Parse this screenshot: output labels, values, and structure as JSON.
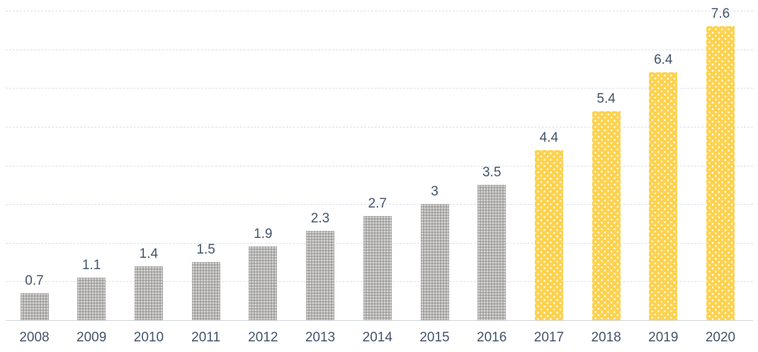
{
  "chart_data": {
    "type": "bar",
    "title": "",
    "categories": [
      "2008",
      "2009",
      "2010",
      "2011",
      "2012",
      "2013",
      "2014",
      "2015",
      "2016",
      "2017",
      "2018",
      "2019",
      "2020"
    ],
    "values": [
      0.7,
      1.1,
      1.4,
      1.5,
      1.9,
      2.3,
      2.7,
      3,
      3.5,
      4.4,
      5.4,
      6.4,
      7.6
    ],
    "data_labels": [
      "0.7",
      "1.1",
      "1.4",
      "1.5",
      "1.9",
      "2.3",
      "2.7",
      "3",
      "3.5",
      "4.4",
      "5.4",
      "6.4",
      "7.6"
    ],
    "bar_color_keys": [
      "gray",
      "gray",
      "gray",
      "gray",
      "gray",
      "gray",
      "gray",
      "gray",
      "gray",
      "yellow",
      "yellow",
      "yellow",
      "yellow"
    ],
    "xlabel": "",
    "ylabel": "",
    "ylim": [
      0,
      8
    ],
    "gridline_interval": 1,
    "grid": "horizontal dashed gridlines at each integer value, no vertical gridlines",
    "y_axis_tick_labels": "none visible",
    "legend": "none",
    "colors": {
      "gray_bar_fill": "#b5b4b2",
      "yellow_bar_fill": "#fdd24f",
      "yellow_bar_pattern": "small white dots in diagonal lattice",
      "gray_bar_pattern": "fine speckled texture",
      "label_text": "#44546a",
      "gridline": "#d9e0ea",
      "axis_line": "#d2d3d5",
      "background": "#ffffff"
    }
  }
}
